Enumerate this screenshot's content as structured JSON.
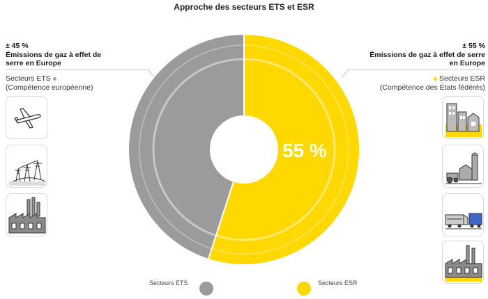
{
  "title": "Approche des secteurs ETS et ESR",
  "left": {
    "pct": "± 45 %",
    "headline": "Émissions de gaz à effet de serre en Europe",
    "sector": "Secteurs ETS",
    "competence": "(Compétence européenne)",
    "icons": [
      "airplane-icon",
      "power-lines-icon",
      "factory-icon"
    ]
  },
  "right": {
    "pct": "± 55 %",
    "headline": "Émissions de gaz à effet de serre en Europe",
    "sector": "Secteurs ESR",
    "competence": "(Compétence des États fédérés)",
    "icons": [
      "buildings-icon",
      "farm-icon",
      "train-truck-icon",
      "factory-icon"
    ]
  },
  "colors": {
    "ets": "#9b9b9b",
    "esr": "#ffd800",
    "ets_dot": "#b59cc0"
  },
  "chart_data": {
    "type": "pie",
    "center_label": "55 %",
    "slices": [
      {
        "name": "Secteurs ESR",
        "value": 55,
        "color": "#ffd800"
      },
      {
        "name": "Secteurs ETS",
        "value": 45,
        "color": "#9b9b9b"
      }
    ],
    "legend": [
      "Secteurs ETS",
      "Secteurs ESR"
    ],
    "legend_position": "bottom"
  }
}
